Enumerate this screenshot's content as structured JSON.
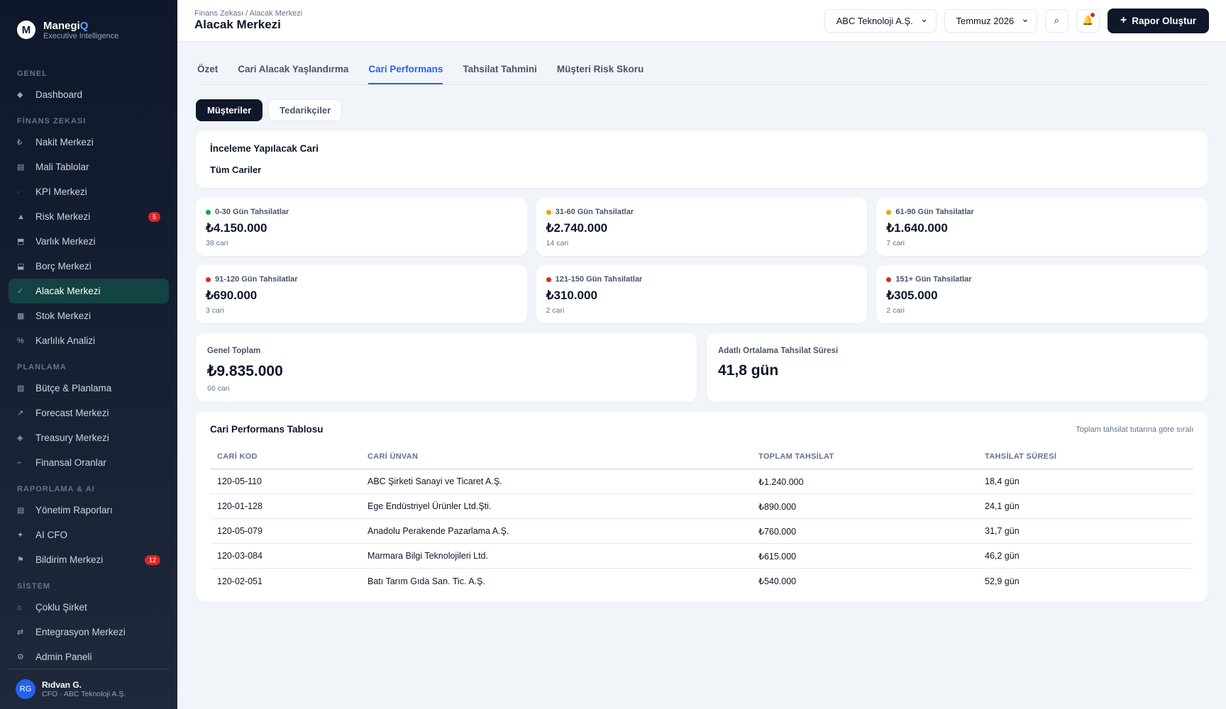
{
  "brand": {
    "name": "Manegi",
    "accent": "Q",
    "tagline": "Executive Intelligence",
    "logo": "M"
  },
  "sidebar": {
    "sections": [
      {
        "title": "GENEL",
        "items": [
          {
            "icon": "◆",
            "label": "Dashboard"
          }
        ]
      },
      {
        "title": "FİNANS ZEKASI",
        "items": [
          {
            "icon": "₺",
            "label": "Nakit Merkezi"
          },
          {
            "icon": "▤",
            "label": "Mali Tablolar"
          },
          {
            "icon": "·",
            "label": "KPI Merkezi"
          },
          {
            "icon": "▲",
            "label": "Risk Merkezi",
            "badge": "5"
          },
          {
            "icon": "⬒",
            "label": "Varlık Merkezi"
          },
          {
            "icon": "⬓",
            "label": "Borç Merkezi"
          },
          {
            "icon": "✓",
            "label": "Alacak Merkezi",
            "active": true
          },
          {
            "icon": "▦",
            "label": "Stok Merkezi"
          },
          {
            "icon": "%",
            "label": "Karlılık Analizi"
          }
        ]
      },
      {
        "title": "PLANLAMA",
        "items": [
          {
            "icon": "▧",
            "label": "Bütçe & Planlama"
          },
          {
            "icon": "↗",
            "label": "Forecast Merkezi"
          },
          {
            "icon": "◈",
            "label": "Treasury Merkezi"
          },
          {
            "icon": "÷",
            "label": "Finansal Oranlar"
          }
        ]
      },
      {
        "title": "RAPORLAMA & AI",
        "items": [
          {
            "icon": "▤",
            "label": "Yönetim Raporları"
          },
          {
            "icon": "✦",
            "label": "AI CFO"
          },
          {
            "icon": "⚑",
            "label": "Bildirim Merkezi",
            "badge": "12"
          }
        ]
      },
      {
        "title": "SİSTEM",
        "items": [
          {
            "icon": "⌂",
            "label": "Çoklu Şirket"
          },
          {
            "icon": "⇄",
            "label": "Entegrasyon Merkezi"
          },
          {
            "icon": "⚙",
            "label": "Admin Paneli"
          }
        ]
      }
    ]
  },
  "user": {
    "initials": "RG",
    "name": "Rıdvan G.",
    "role": "CFO · ABC Teknoloji A.Ş."
  },
  "header": {
    "breadcrumb": "Finans Zekası / Alacak Merkezi",
    "title": "Alacak Merkezi",
    "company": "ABC Teknoloji A.Ş.",
    "period": "Temmuz 2026",
    "search": "⌕",
    "bell": "🔔",
    "button": "Rapor Oluştur"
  },
  "tabs": [
    {
      "label": "Özet"
    },
    {
      "label": "Cari Alacak Yaşlandırma"
    },
    {
      "label": "Cari Performans",
      "active": true
    },
    {
      "label": "Tahsilat Tahmini"
    },
    {
      "label": "Müşteri Risk Skoru"
    }
  ],
  "subtabs": [
    {
      "label": "Müşteriler",
      "active": true
    },
    {
      "label": "Tedarikçiler"
    }
  ],
  "filter": {
    "title": "İnceleme Yapılacak Cari",
    "value": "Tüm Cariler"
  },
  "aging": [
    {
      "label": "0-30 Gün Tahsilatlar",
      "amount": "₺4.150.000",
      "count": "38 cari",
      "color": "#16a34a"
    },
    {
      "label": "31-60 Gün Tahsilatlar",
      "amount": "₺2.740.000",
      "count": "14 cari",
      "color": "#f59e0b"
    },
    {
      "label": "61-90 Gün Tahsilatlar",
      "amount": "₺1.640.000",
      "count": "7 cari",
      "color": "#f59e0b"
    },
    {
      "label": "91-120 Gün Tahsilatlar",
      "amount": "₺690.000",
      "count": "3 cari",
      "color": "#dc2626"
    },
    {
      "label": "121-150 Gün Tahsilatlar",
      "amount": "₺310.000",
      "count": "2 cari",
      "color": "#dc2626"
    },
    {
      "label": "151+ Gün Tahsilatlar",
      "amount": "₺305.000",
      "count": "2 cari",
      "color": "#dc2626"
    }
  ],
  "summary": [
    {
      "label": "Genel Toplam",
      "value": "₺9.835.000",
      "sub": "66 cari"
    },
    {
      "label": "Adatlı Ortalama Tahsilat Süresi",
      "value": "41,8 gün"
    }
  ],
  "table": {
    "title": "Cari Performans Tablosu",
    "note": "Toplam tahsilat tutarına göre sıralı",
    "columns": [
      "CARİ KOD",
      "CARİ ÜNVAN",
      "TOPLAM TAHSİLAT",
      "TAHSİLAT SÜRESİ"
    ],
    "rows": [
      [
        "120-05-110",
        "ABC Şirketi Sanayi ve Ticaret A.Ş.",
        "₺1.240.000",
        "18,4 gün"
      ],
      [
        "120-01-128",
        "Ege Endüstriyel Ürünler Ltd.Şti.",
        "₺890.000",
        "24,1 gün"
      ],
      [
        "120-05-079",
        "Anadolu Perakende Pazarlama A.Ş.",
        "₺760.000",
        "31,7 gün"
      ],
      [
        "120-03-084",
        "Marmara Bilgi Teknolojileri Ltd.",
        "₺615.000",
        "46,2 gün"
      ],
      [
        "120-02-051",
        "Batı Tarım Gıda San. Tic. A.Ş.",
        "₺540.000",
        "52,9 gün"
      ]
    ]
  }
}
